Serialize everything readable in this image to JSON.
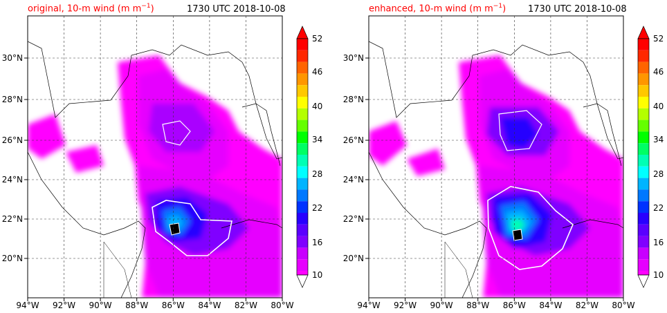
{
  "panels": [
    {
      "title_prefix": "original, 10-m wind (m m",
      "title_exp": "−1",
      "title_suffix": ")",
      "time_label": "1730 UTC 2018-10-08"
    },
    {
      "title_prefix": "enhanced, 10-m wind (m m",
      "title_exp": "−1",
      "title_suffix": ")",
      "time_label": "1730 UTC 2018-10-08"
    }
  ],
  "map": {
    "lon_range": [
      -94,
      -80
    ],
    "lat_range": [
      18.2,
      32.1
    ],
    "lon_ticks": [
      {
        "value": -94,
        "label": "94°W"
      },
      {
        "value": -92,
        "label": "92°W"
      },
      {
        "value": -90,
        "label": "90°W"
      },
      {
        "value": -88,
        "label": "88°W"
      },
      {
        "value": -86,
        "label": "86°W"
      },
      {
        "value": -84,
        "label": "84°W"
      },
      {
        "value": -82,
        "label": "82°W"
      },
      {
        "value": -80,
        "label": "80°W"
      }
    ],
    "lat_ticks": [
      {
        "value": 20,
        "label": "20°N"
      },
      {
        "value": 22,
        "label": "22°N"
      },
      {
        "value": 24,
        "label": "24°N"
      },
      {
        "value": 26,
        "label": "26°N"
      },
      {
        "value": 28,
        "label": "28°N"
      },
      {
        "value": 30,
        "label": "30°N"
      }
    ],
    "grid": true
  },
  "colorbar": {
    "levels": [
      10,
      12,
      14,
      16,
      18,
      20,
      22,
      24,
      26,
      28,
      30,
      32,
      34,
      36,
      38,
      40,
      42,
      44,
      46,
      48,
      50,
      52
    ],
    "tick_labels": [
      "10",
      "16",
      "22",
      "28",
      "34",
      "40",
      "46",
      "52"
    ],
    "tick_values": [
      10,
      16,
      22,
      28,
      34,
      40,
      46,
      52
    ],
    "colors": [
      "#ff00ff",
      "#e600ff",
      "#c800ff",
      "#aa00ff",
      "#8000ff",
      "#5a00ff",
      "#2800ff",
      "#0032ff",
      "#0078ff",
      "#00b4ff",
      "#00ffff",
      "#00ffb4",
      "#00ff64",
      "#00ff00",
      "#64ff00",
      "#b4ff00",
      "#ffff00",
      "#ffc800",
      "#ff9600",
      "#ff6400",
      "#ff2800",
      "#ff0000"
    ],
    "extend": "both",
    "over_color": "#ff0000"
  }
}
